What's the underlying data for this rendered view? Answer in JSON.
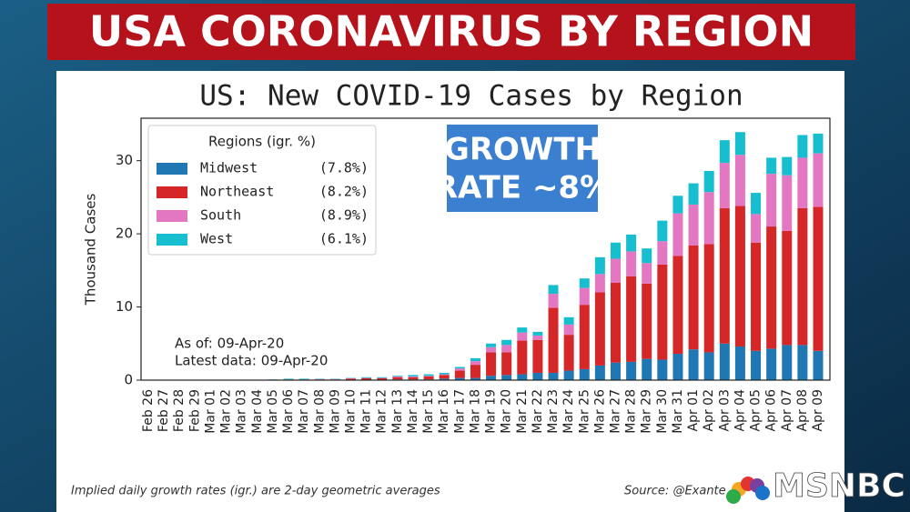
{
  "banner": "USA CORONAVIRUS BY REGION",
  "chart_data": {
    "type": "bar",
    "stacked": true,
    "title": "US: New COVID-19 Cases by Region",
    "ylabel": "Thousand Cases",
    "legend_title": "Regions (igr. %)",
    "legend_position": "upper-left",
    "categories": [
      "Feb 26",
      "Feb 27",
      "Feb 28",
      "Feb 29",
      "Mar 01",
      "Mar 02",
      "Mar 03",
      "Mar 04",
      "Mar 05",
      "Mar 06",
      "Mar 07",
      "Mar 08",
      "Mar 09",
      "Mar 10",
      "Mar 11",
      "Mar 12",
      "Mar 13",
      "Mar 14",
      "Mar 15",
      "Mar 16",
      "Mar 17",
      "Mar 18",
      "Mar 19",
      "Mar 20",
      "Mar 21",
      "Mar 22",
      "Mar 23",
      "Mar 24",
      "Mar 25",
      "Mar 26",
      "Mar 27",
      "Mar 28",
      "Mar 29",
      "Mar 30",
      "Mar 31",
      "Apr 01",
      "Apr 02",
      "Apr 03",
      "Apr 04",
      "Apr 05",
      "Apr 06",
      "Apr 07",
      "Apr 08",
      "Apr 09"
    ],
    "series": [
      {
        "name": "Midwest",
        "igr": "(7.8%)",
        "color": "#1f77b4",
        "values": [
          0,
          0,
          0,
          0,
          0,
          0,
          0,
          0,
          0,
          0,
          0,
          0,
          0,
          0.05,
          0.05,
          0.05,
          0.1,
          0.1,
          0.1,
          0.2,
          0.3,
          0.3,
          0.6,
          0.7,
          0.8,
          1.0,
          1.0,
          1.3,
          1.5,
          2.0,
          2.4,
          2.5,
          2.9,
          2.8,
          3.6,
          4.2,
          3.8,
          5.0,
          4.6,
          4.0,
          4.3,
          4.8,
          4.8,
          4.0
        ]
      },
      {
        "name": "Northeast",
        "igr": "(8.2%)",
        "color": "#d62728",
        "values": [
          0,
          0,
          0,
          0,
          0,
          0,
          0,
          0,
          0,
          0.1,
          0.1,
          0.1,
          0.1,
          0.15,
          0.2,
          0.2,
          0.3,
          0.3,
          0.4,
          0.5,
          1.0,
          1.8,
          3.2,
          3.1,
          4.6,
          4.5,
          8.9,
          4.9,
          8.8,
          10.0,
          10.9,
          11.7,
          10.3,
          13.0,
          13.4,
          14.2,
          14.8,
          18.5,
          19.2,
          14.8,
          16.7,
          15.6,
          18.7,
          19.7
        ]
      },
      {
        "name": "South",
        "igr": "(8.9%)",
        "color": "#e377c2",
        "values": [
          0,
          0,
          0,
          0,
          0,
          0,
          0,
          0,
          0,
          0,
          0,
          0.05,
          0.05,
          0.05,
          0.05,
          0.05,
          0.1,
          0.1,
          0.1,
          0.1,
          0.3,
          0.5,
          0.7,
          1.0,
          1.1,
          0.6,
          1.9,
          1.4,
          2.3,
          2.5,
          3.3,
          3.4,
          2.8,
          3.2,
          5.8,
          5.6,
          7.1,
          6.2,
          7.0,
          3.9,
          7.2,
          7.6,
          6.9,
          7.3
        ]
      },
      {
        "name": "West",
        "igr": "(6.1%)",
        "color": "#17becf",
        "values": [
          0,
          0,
          0,
          0,
          0,
          0,
          0,
          0,
          0.1,
          0.1,
          0.1,
          0.05,
          0.05,
          0.05,
          0.1,
          0.1,
          0.1,
          0.2,
          0.2,
          0.2,
          0.2,
          0.4,
          0.5,
          0.7,
          0.7,
          0.5,
          1.2,
          1.0,
          1.3,
          2.3,
          2.2,
          2.3,
          2.0,
          2.8,
          2.4,
          2.9,
          2.9,
          3.1,
          3.1,
          2.9,
          2.2,
          2.5,
          3.1,
          2.7
        ]
      }
    ],
    "ylim": [
      0,
      35.8
    ],
    "yticks": [
      0,
      10,
      20,
      30
    ],
    "annotations": [
      "As of: 09-Apr-20",
      "Latest data: 09-Apr-20"
    ]
  },
  "overlay": {
    "growth_box": [
      "GROWTH",
      "RATE ~8%"
    ]
  },
  "footer": {
    "note": "Implied daily growth rates (igr.) are 2-day geometric averages",
    "source": "Source: @Exante"
  },
  "logo": "MSNBC"
}
